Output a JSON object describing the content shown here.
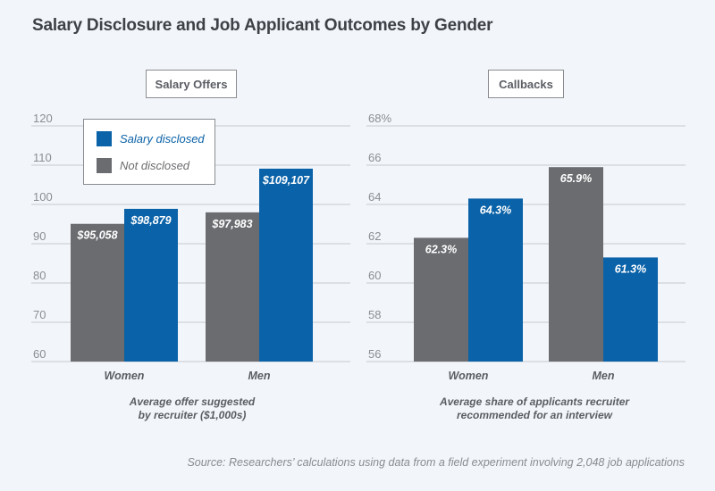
{
  "title": "Salary Disclosure and Job Applicant Outcomes by Gender",
  "legend": [
    {
      "label": "Salary disclosed",
      "color": "#0a62a8"
    },
    {
      "label": "Not disclosed",
      "color": "#6b6c70"
    }
  ],
  "colors": {
    "disclosed": "#0a62a8",
    "not_disclosed": "#6b6c70",
    "grid": "#cfd3d8",
    "tick": "#8a8d92",
    "category": "#5a5d63"
  },
  "chart_data": [
    {
      "type": "bar",
      "title": "Salary Offers",
      "categories": [
        "Women",
        "Men"
      ],
      "series": [
        {
          "name": "Not disclosed",
          "values": [
            95.058,
            97.983
          ],
          "labels": [
            "$95,058",
            "$97,983"
          ]
        },
        {
          "name": "Salary disclosed",
          "values": [
            98.879,
            109.107
          ],
          "labels": [
            "$98,879",
            "$109,107"
          ]
        }
      ],
      "xlabel": "Average offer suggested\nby recruiter ($1,000s)",
      "xlabel_lines": [
        "Average offer suggested",
        "by recruiter ($1,000s)"
      ],
      "ylabel": "",
      "ylim": [
        60,
        120
      ],
      "yticks": [
        60,
        70,
        80,
        90,
        100,
        110,
        120
      ],
      "ytick_labels": [
        "60",
        "70",
        "80",
        "90",
        "100",
        "110",
        "120"
      ],
      "grid": true,
      "legend": "top-left"
    },
    {
      "type": "bar",
      "title": "Callbacks",
      "categories": [
        "Women",
        "Men"
      ],
      "series": [
        {
          "name": "Not disclosed",
          "values": [
            62.3,
            65.9
          ],
          "labels": [
            "62.3%",
            "65.9%"
          ]
        },
        {
          "name": "Salary disclosed",
          "values": [
            64.3,
            61.3
          ],
          "labels": [
            "64.3%",
            "61.3%"
          ]
        }
      ],
      "xlabel": "Average share of applicants recruiter\nrecommended for an interview",
      "xlabel_lines": [
        "Average share of applicants recruiter",
        "recommended for an interview"
      ],
      "ylabel": "",
      "ylim": [
        56,
        68
      ],
      "yticks": [
        56,
        58,
        60,
        62,
        64,
        66,
        68
      ],
      "ytick_labels": [
        "56",
        "58",
        "60",
        "62",
        "64",
        "66",
        "68%"
      ],
      "grid": true,
      "legend": "none"
    }
  ],
  "source": "Source: Researchers’ calculations using data from a field experiment involving 2,048 job applications"
}
